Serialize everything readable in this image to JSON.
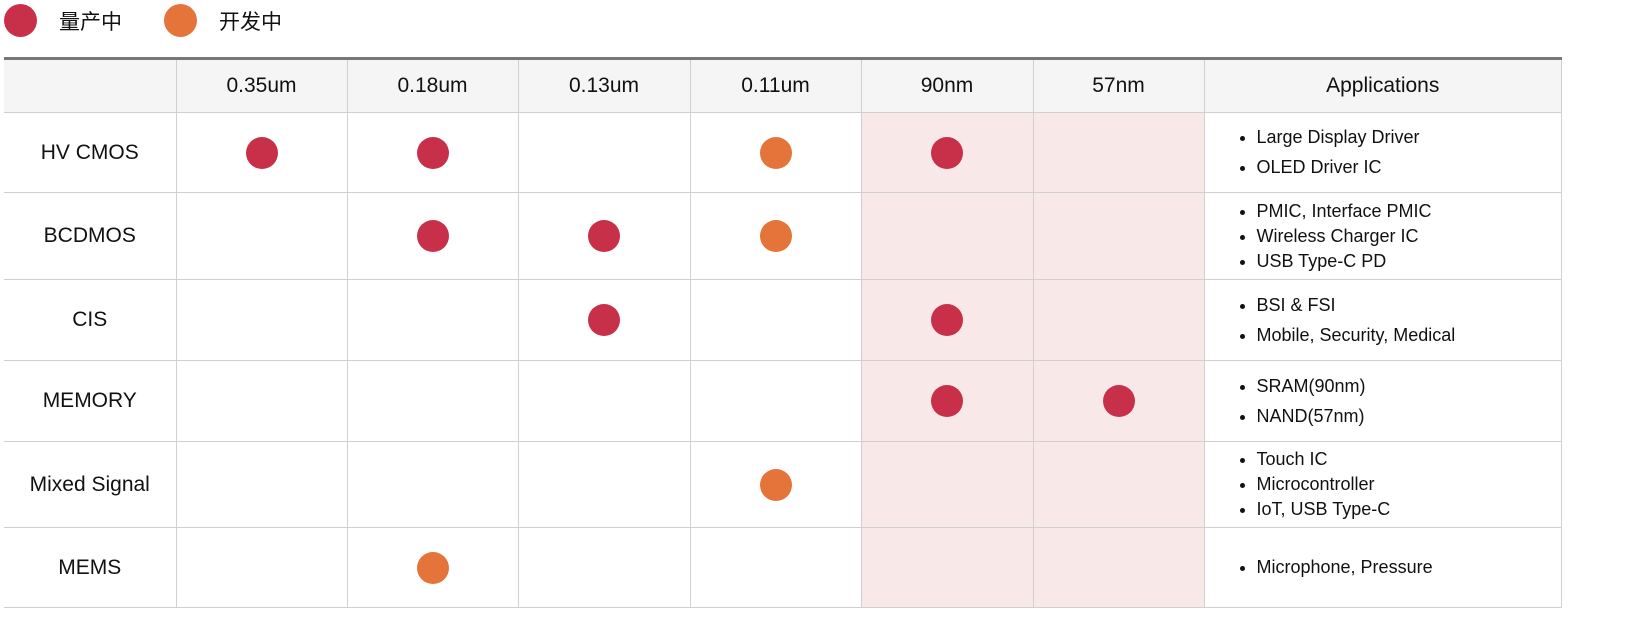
{
  "legend": [
    {
      "label": "量产中",
      "color": "#c8304a"
    },
    {
      "label": "开发中",
      "color": "#e4743a"
    }
  ],
  "status_colors": {
    "mass": "#c8304a",
    "dev": "#e4743a"
  },
  "highlight_color": "#f8e8e8",
  "columns": [
    "0.35um",
    "0.18um",
    "0.13um",
    "0.11um",
    "90nm",
    "57nm"
  ],
  "applications_header": "Applications",
  "rows": [
    {
      "name": "HV CMOS",
      "height": 80,
      "cells": [
        "mass",
        "mass",
        "",
        "dev",
        "mass",
        ""
      ],
      "spaced": true,
      "apps": [
        "Large Display Driver",
        "OLED Driver IC"
      ]
    },
    {
      "name": "BCDMOS",
      "height": 87,
      "cells": [
        "",
        "mass",
        "mass",
        "dev",
        "",
        ""
      ],
      "spaced": false,
      "apps": [
        "PMIC, Interface PMIC",
        "Wireless Charger IC",
        "USB Type-C PD"
      ]
    },
    {
      "name": "CIS",
      "height": 81,
      "cells": [
        "",
        "",
        "mass",
        "",
        "mass",
        ""
      ],
      "spaced": true,
      "apps": [
        "BSI & FSI",
        "Mobile, Security, Medical"
      ]
    },
    {
      "name": "MEMORY",
      "height": 81,
      "cells": [
        "",
        "",
        "",
        "",
        "mass",
        "mass"
      ],
      "spaced": true,
      "apps": [
        "SRAM(90nm)",
        "NAND(57nm)"
      ]
    },
    {
      "name": "Mixed Signal",
      "height": 86,
      "cells": [
        "",
        "",
        "",
        "dev",
        "",
        ""
      ],
      "spaced": false,
      "apps": [
        "Touch IC",
        "Microcontroller",
        "IoT, USB Type-C"
      ]
    },
    {
      "name": "MEMS",
      "height": 80,
      "cells": [
        "",
        "dev",
        "",
        "",
        "",
        ""
      ],
      "spaced": false,
      "apps": [
        "Microphone, Pressure"
      ]
    }
  ]
}
